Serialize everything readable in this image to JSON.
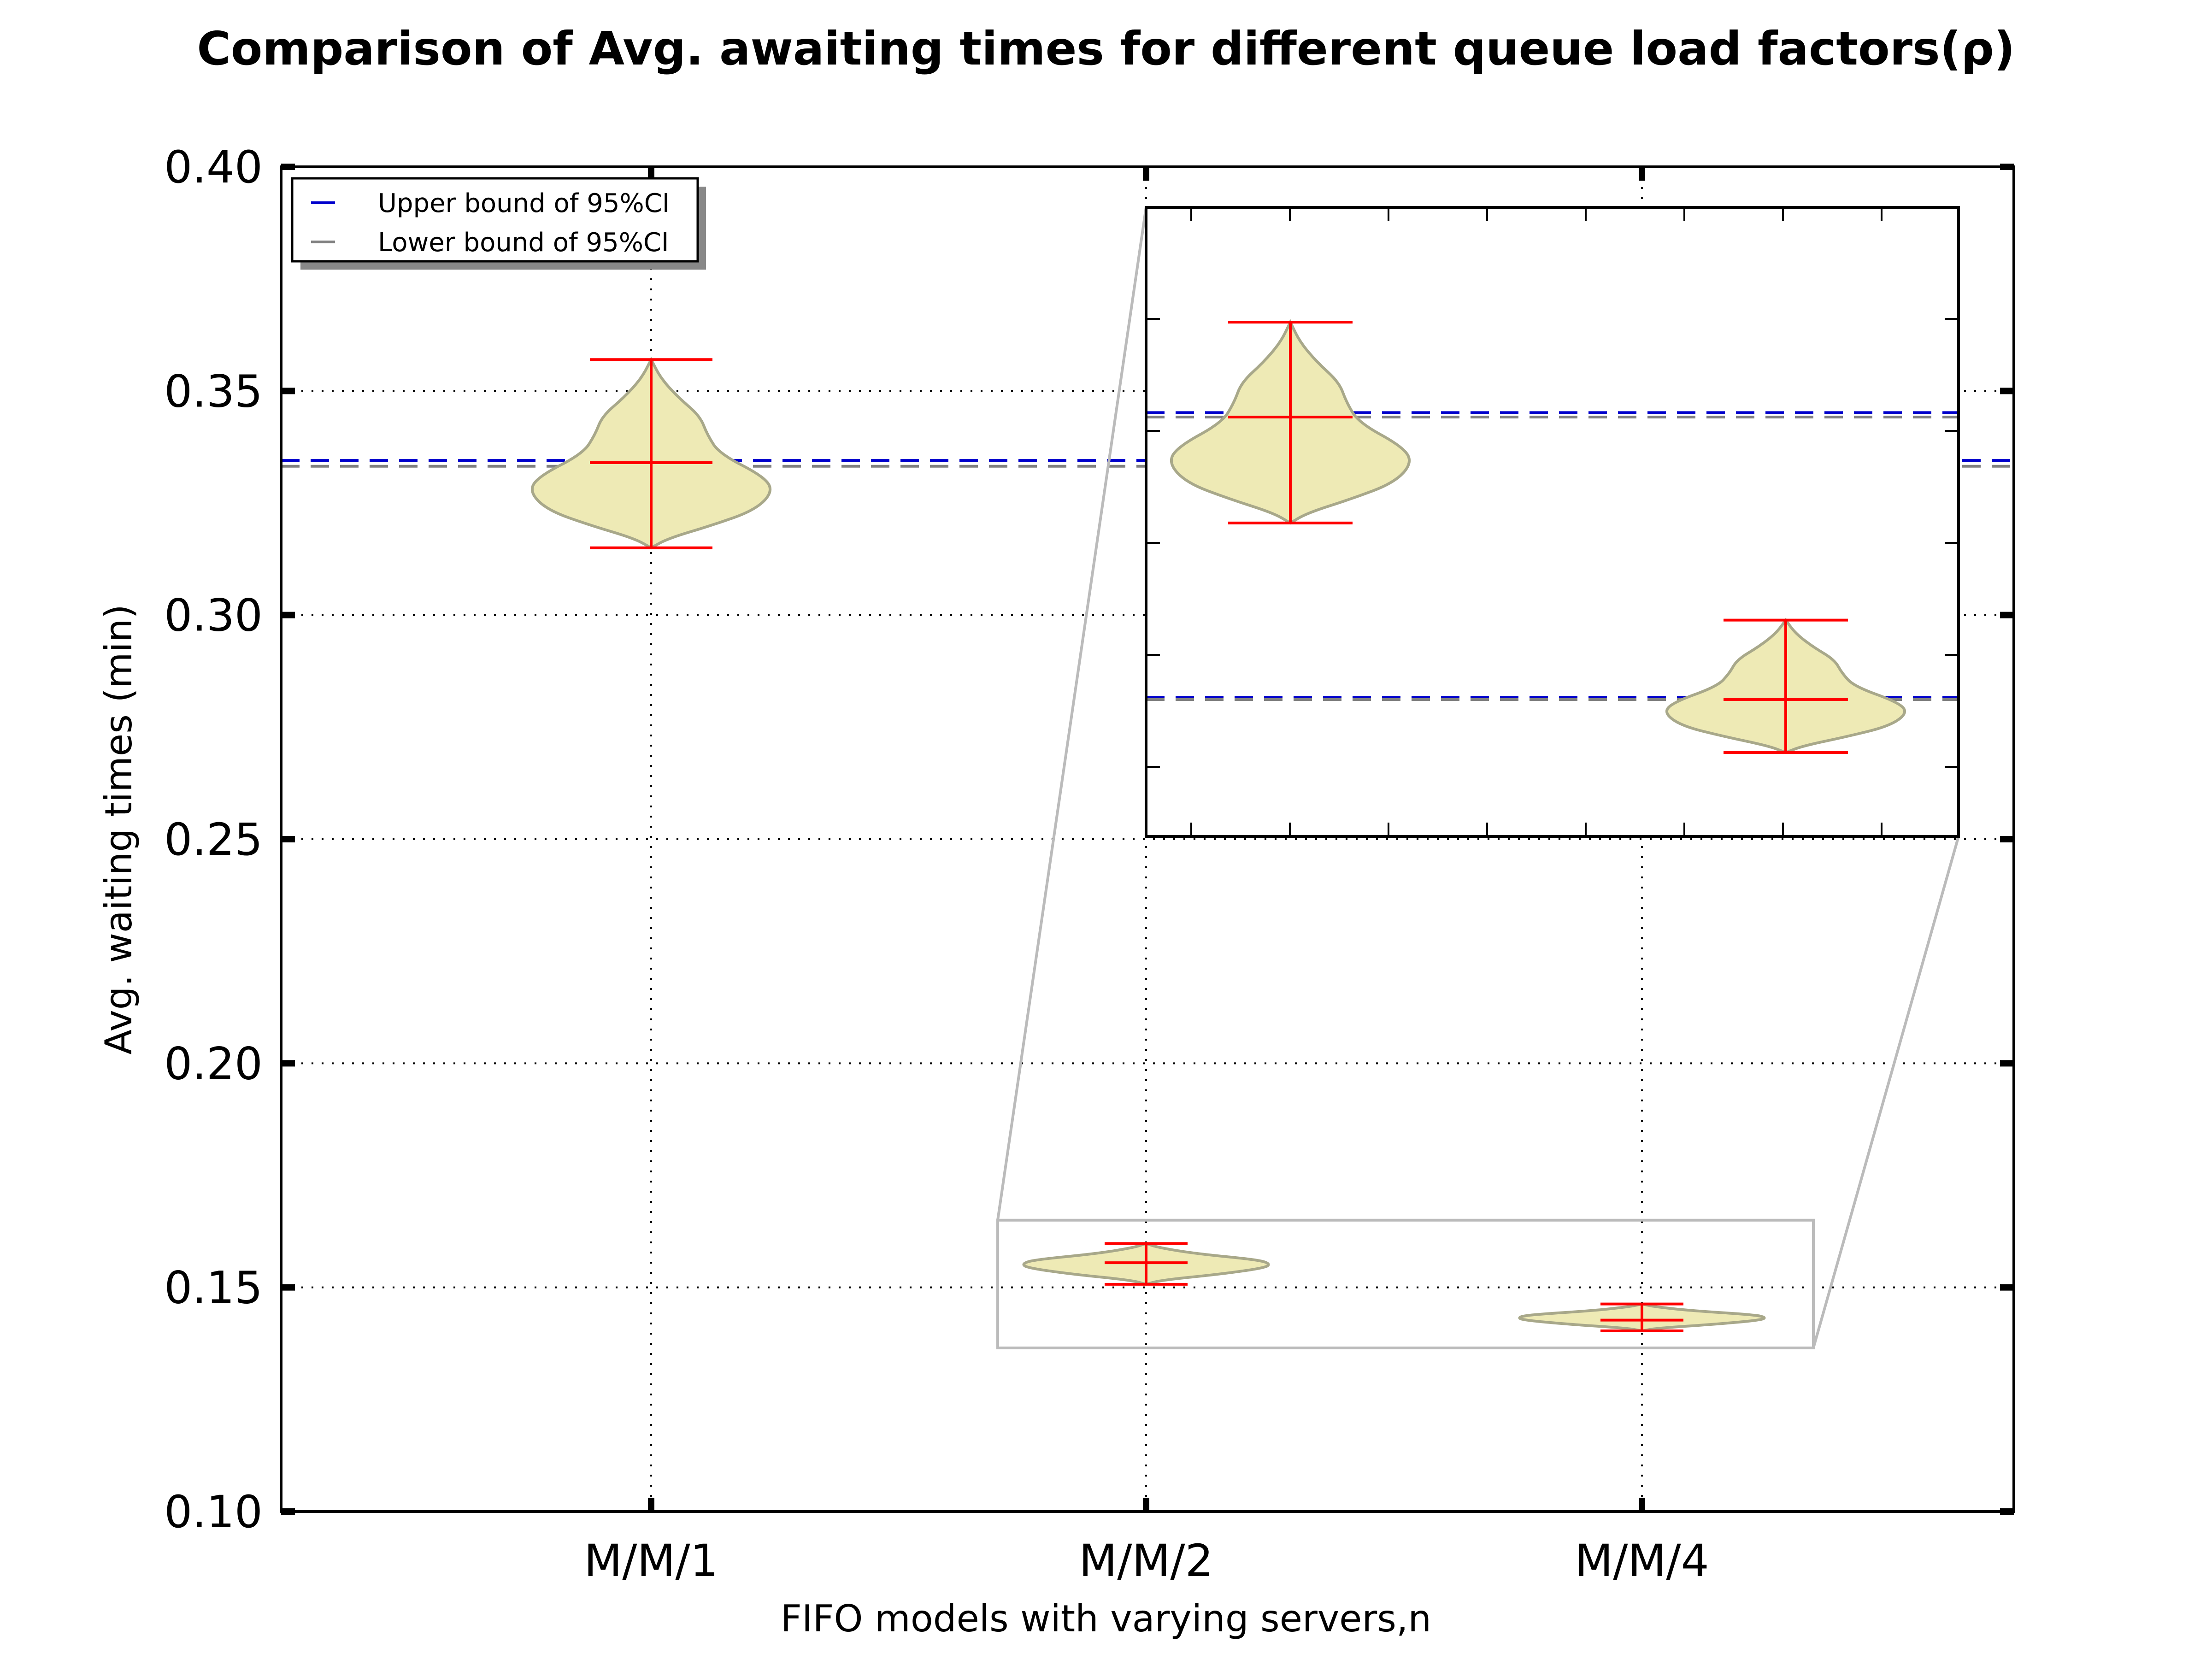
{
  "chart_data": {
    "type": "violin",
    "title": "Comparison of Avg. awaiting times for different queue load factors(ρ)",
    "xlabel": "FIFO models with varying servers,n",
    "ylabel": "Avg. waiting times (min)",
    "categories": [
      "M/M/1",
      "M/M/2",
      "M/M/4"
    ],
    "ylim": [
      0.1,
      0.4
    ],
    "yticks": [
      0.1,
      0.15,
      0.2,
      0.25,
      0.3,
      0.35,
      0.4
    ],
    "ytick_labels": [
      "0.10",
      "0.15",
      "0.20",
      "0.25",
      "0.30",
      "0.35",
      "0.40"
    ],
    "grid": true,
    "legend": {
      "position": "top-left",
      "entries": [
        {
          "label": "Upper bound of 95%CI",
          "color": "#0000cc"
        },
        {
          "label": "Lower bound of 95%CI",
          "color": "#808080"
        }
      ]
    },
    "violins": [
      {
        "category": "M/M/1",
        "min": 0.315,
        "max": 0.357,
        "mean": 0.334,
        "mode": 0.332
      },
      {
        "category": "M/M/2",
        "min": 0.1507,
        "max": 0.1598,
        "mean": 0.1555,
        "mode": 0.1555
      },
      {
        "category": "M/M/4",
        "min": 0.1403,
        "max": 0.1463,
        "mean": 0.1427,
        "mode": 0.1427
      }
    ],
    "ci_lines": [
      {
        "category": "M/M/1",
        "upper": 0.3345,
        "lower": 0.3332
      },
      {
        "category": "M/M/2",
        "upper": 0.1557,
        "lower": 0.1555
      },
      {
        "category": "M/M/4",
        "upper": 0.1428,
        "lower": 0.1427
      }
    ],
    "inset": {
      "xlim": [
        "M/M/2",
        "M/M/4"
      ],
      "ylim": [
        0.1365,
        0.165
      ]
    },
    "colors": {
      "violin_fill": "#eeeab5",
      "violin_edge": "#a8a88a",
      "error_bar": "#ff0000",
      "upper_ci": "#0000cc",
      "lower_ci": "#808080",
      "zoom_box": "#bbbbbb"
    }
  }
}
